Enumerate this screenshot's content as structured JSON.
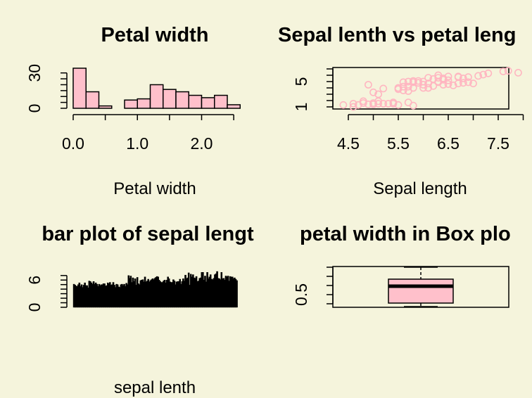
{
  "colors": {
    "background": "#f5f4dc",
    "fill": "#ffc0cb",
    "point": "#ffb6c1",
    "ink": "#000000"
  },
  "chart_data": [
    {
      "type": "bar",
      "kind": "histogram",
      "title": "Petal width",
      "xlabel": "Petal width",
      "ylabel": "",
      "bin_edges": [
        0.0,
        0.2,
        0.4,
        0.6,
        0.8,
        1.0,
        1.2,
        1.4,
        1.6,
        1.8,
        2.0,
        2.2,
        2.4,
        2.6
      ],
      "values": [
        34,
        14,
        2,
        0,
        7,
        8,
        20,
        16,
        14,
        11,
        9,
        11,
        3
      ],
      "xticks": [
        "0.0",
        "1.0",
        "2.0"
      ],
      "yticks": [
        "0",
        "30"
      ],
      "xlim": [
        0.0,
        2.6
      ],
      "ylim": [
        0,
        34
      ]
    },
    {
      "type": "scatter",
      "title": "Sepal lenth vs petal leng",
      "xlabel": "Sepal length",
      "ylabel": "",
      "xticks": [
        "4.5",
        "5.5",
        "6.5",
        "7.5"
      ],
      "yticks": [
        "1",
        "5"
      ],
      "xlim": [
        4.3,
        7.9
      ],
      "ylim": [
        1.0,
        6.9
      ],
      "points": [
        [
          4.4,
          1.3
        ],
        [
          4.6,
          1.5
        ],
        [
          4.7,
          1.3
        ],
        [
          4.8,
          1.6
        ],
        [
          4.9,
          1.4
        ],
        [
          5.0,
          1.4
        ],
        [
          5.0,
          1.6
        ],
        [
          5.1,
          1.5
        ],
        [
          5.2,
          1.5
        ],
        [
          5.3,
          1.5
        ],
        [
          5.4,
          1.7
        ],
        [
          5.5,
          1.3
        ],
        [
          5.7,
          1.7
        ],
        [
          5.8,
          1.2
        ],
        [
          4.6,
          1.0
        ],
        [
          5.4,
          1.5
        ],
        [
          5.1,
          1.9
        ],
        [
          4.8,
          1.9
        ],
        [
          4.9,
          4.5
        ],
        [
          5.0,
          3.3
        ],
        [
          5.1,
          3.0
        ],
        [
          5.2,
          3.9
        ],
        [
          5.5,
          4.0
        ],
        [
          5.6,
          3.6
        ],
        [
          5.7,
          4.2
        ],
        [
          5.8,
          4.0
        ],
        [
          5.9,
          4.8
        ],
        [
          6.0,
          4.5
        ],
        [
          6.1,
          4.7
        ],
        [
          6.2,
          4.3
        ],
        [
          6.3,
          4.9
        ],
        [
          6.4,
          4.5
        ],
        [
          6.5,
          4.6
        ],
        [
          6.6,
          4.4
        ],
        [
          6.7,
          4.7
        ],
        [
          6.8,
          4.8
        ],
        [
          6.9,
          4.9
        ],
        [
          7.0,
          4.7
        ],
        [
          5.6,
          4.2
        ],
        [
          5.7,
          3.5
        ],
        [
          5.5,
          3.8
        ],
        [
          6.0,
          4.0
        ],
        [
          6.1,
          4.0
        ],
        [
          5.8,
          5.1
        ],
        [
          6.0,
          5.0
        ],
        [
          6.1,
          5.6
        ],
        [
          6.2,
          5.4
        ],
        [
          6.3,
          5.6
        ],
        [
          6.4,
          5.5
        ],
        [
          6.5,
          5.2
        ],
        [
          6.7,
          5.7
        ],
        [
          6.8,
          5.5
        ],
        [
          6.9,
          5.7
        ],
        [
          7.1,
          5.9
        ],
        [
          7.2,
          6.1
        ],
        [
          7.3,
          6.3
        ],
        [
          7.6,
          6.6
        ],
        [
          7.7,
          6.7
        ],
        [
          7.9,
          6.4
        ],
        [
          5.6,
          4.9
        ],
        [
          5.9,
          5.1
        ],
        [
          6.3,
          6.0
        ],
        [
          6.4,
          5.3
        ],
        [
          6.5,
          5.8
        ],
        [
          6.7,
          5.8
        ],
        [
          6.3,
          5.0
        ],
        [
          5.7,
          5.0
        ],
        [
          5.8,
          4.9
        ]
      ]
    },
    {
      "type": "bar",
      "title": "bar plot of sepal lengt",
      "xlabel": "sepal lenth",
      "ylabel": "",
      "yticks": [
        "0",
        "6"
      ],
      "ylim": [
        0,
        7.9
      ],
      "n_bars": 150,
      "values": [
        5.1,
        4.9,
        4.7,
        4.6,
        5.0,
        5.4,
        4.6,
        5.0,
        4.4,
        4.9,
        5.4,
        4.8,
        4.8,
        4.3,
        5.8,
        5.7,
        5.4,
        5.1,
        5.7,
        5.1,
        5.4,
        5.1,
        4.6,
        5.1,
        4.8,
        5.0,
        5.0,
        5.2,
        5.2,
        4.7,
        4.8,
        5.4,
        5.2,
        5.5,
        4.9,
        5.0,
        5.5,
        4.9,
        4.4,
        5.1,
        5.0,
        4.5,
        4.4,
        5.0,
        5.1,
        4.8,
        5.1,
        4.6,
        5.3,
        5.0,
        7.0,
        6.4,
        6.9,
        5.5,
        6.5,
        5.7,
        6.3,
        4.9,
        6.6,
        5.2,
        5.0,
        5.9,
        6.0,
        6.1,
        5.6,
        6.7,
        5.6,
        5.8,
        6.2,
        5.6,
        5.9,
        6.1,
        6.3,
        6.1,
        6.4,
        6.6,
        6.8,
        6.7,
        6.0,
        5.7,
        5.5,
        5.5,
        5.8,
        6.0,
        5.4,
        6.0,
        6.7,
        6.3,
        5.6,
        5.5,
        5.5,
        6.1,
        5.8,
        5.0,
        5.6,
        5.7,
        5.7,
        6.2,
        5.1,
        5.7,
        6.3,
        5.8,
        7.1,
        6.3,
        6.5,
        7.6,
        4.9,
        7.3,
        6.7,
        7.2,
        6.5,
        6.4,
        6.8,
        5.7,
        5.8,
        6.4,
        6.5,
        7.7,
        7.7,
        6.0,
        6.9,
        5.6,
        7.7,
        6.3,
        6.7,
        7.2,
        6.2,
        6.1,
        6.4,
        7.2,
        7.4,
        7.9,
        6.4,
        6.3,
        6.1,
        7.7,
        6.3,
        6.4,
        6.0,
        6.9,
        6.7,
        6.9,
        5.8,
        6.8,
        6.7,
        6.7,
        6.3,
        6.5,
        6.2,
        5.9
      ]
    },
    {
      "type": "box",
      "title": "petal width in Box plo",
      "ylabel": "",
      "yticks": [
        "0.5"
      ],
      "orientation": "horizontal",
      "min": 0.1,
      "q1": 0.3,
      "median": 1.3,
      "q3": 1.8,
      "max": 2.5
    }
  ]
}
